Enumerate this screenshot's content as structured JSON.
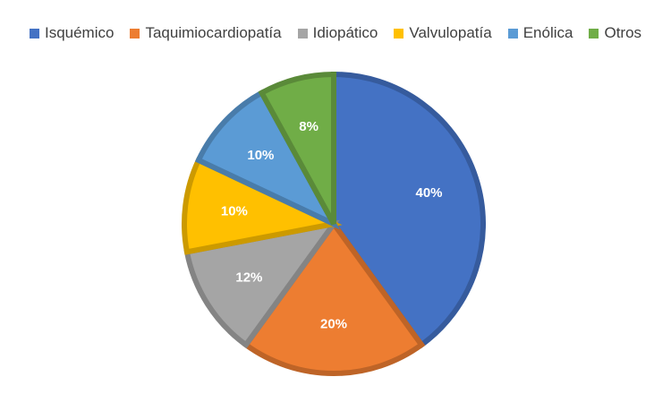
{
  "chart_data": {
    "type": "pie",
    "title": "",
    "categories": [
      "Isquémico",
      "Taquimiocardiopatía",
      "Idiopático",
      "Valvulopatía",
      "Enólica",
      "Otros"
    ],
    "values": [
      40,
      20,
      12,
      10,
      10,
      8
    ],
    "data_labels": [
      "40%",
      "20%",
      "12%",
      "10%",
      "10%",
      "8%"
    ],
    "unit": "%",
    "legend_position": "top",
    "start_angle": "12 o'clock",
    "direction": "clockwise",
    "colors": [
      "#4472C4",
      "#ED7D31",
      "#A5A5A5",
      "#FFC000",
      "#5B9BD5",
      "#70AD47"
    ]
  }
}
